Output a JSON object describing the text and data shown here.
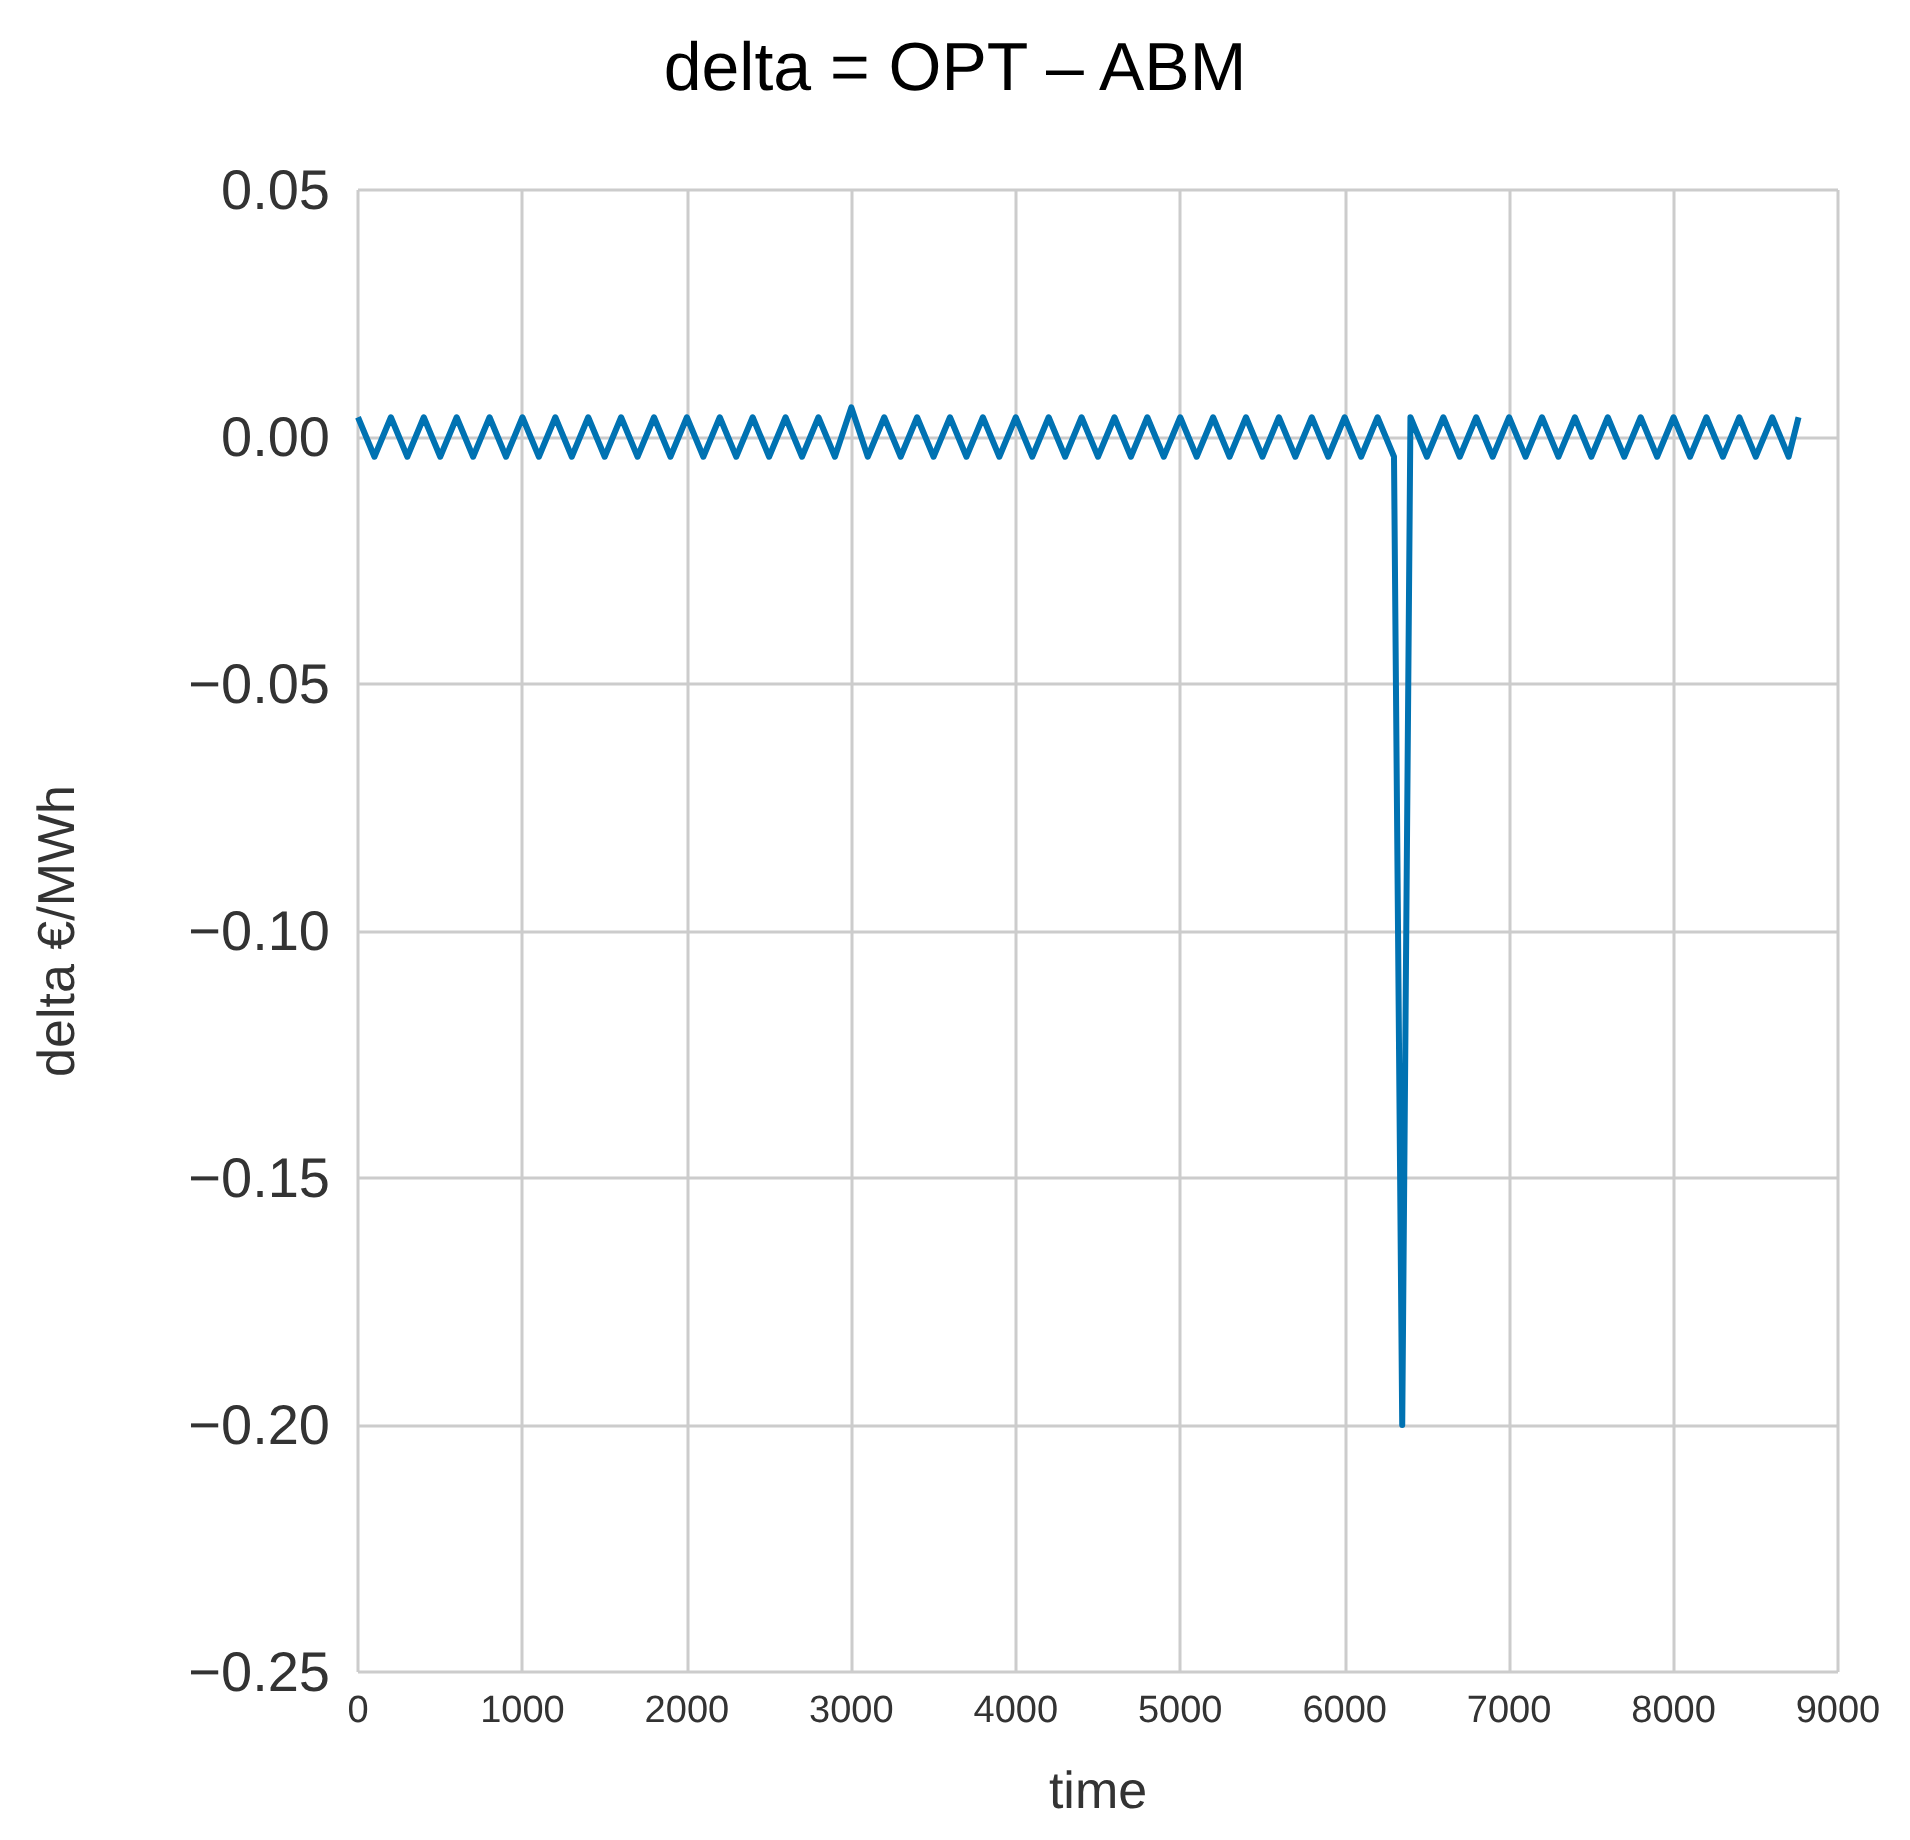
{
  "chart_data": {
    "type": "line",
    "title": "delta = OPT – ABM",
    "xlabel": "time",
    "ylabel": "delta €/MWh",
    "x": [
      0,
      100,
      200,
      300,
      400,
      500,
      600,
      700,
      800,
      900,
      1000,
      1100,
      1200,
      1300,
      1400,
      1500,
      1600,
      1700,
      1800,
      1900,
      2000,
      2100,
      2200,
      2300,
      2400,
      2500,
      2600,
      2700,
      2800,
      2900,
      3000,
      3100,
      3200,
      3300,
      3400,
      3500,
      3600,
      3700,
      3800,
      3900,
      4000,
      4100,
      4200,
      4300,
      4400,
      4500,
      4600,
      4700,
      4800,
      4900,
      5000,
      5100,
      5200,
      5300,
      5400,
      5500,
      5600,
      5700,
      5800,
      5900,
      6000,
      6100,
      6200,
      6300,
      6350,
      6400,
      6500,
      6600,
      6700,
      6800,
      6900,
      7000,
      7100,
      7200,
      7300,
      7400,
      7500,
      7600,
      7700,
      7800,
      7900,
      8000,
      8100,
      8200,
      8300,
      8400,
      8500,
      8600,
      8700,
      8760
    ],
    "series": [
      {
        "color": "#0072b2",
        "values": [
          0.004,
          -0.004,
          0.004,
          -0.004,
          0.004,
          -0.004,
          0.004,
          -0.004,
          0.004,
          -0.004,
          0.004,
          -0.004,
          0.004,
          -0.004,
          0.004,
          -0.004,
          0.004,
          -0.004,
          0.004,
          -0.004,
          0.004,
          -0.004,
          0.004,
          -0.004,
          0.004,
          -0.004,
          0.004,
          -0.004,
          0.004,
          -0.004,
          0.006,
          -0.004,
          0.004,
          -0.004,
          0.004,
          -0.004,
          0.004,
          -0.004,
          0.004,
          -0.004,
          0.004,
          -0.004,
          0.004,
          -0.004,
          0.004,
          -0.004,
          0.004,
          -0.004,
          0.004,
          -0.004,
          0.004,
          -0.004,
          0.004,
          -0.004,
          0.004,
          -0.004,
          0.004,
          -0.004,
          0.004,
          -0.004,
          0.004,
          -0.004,
          0.004,
          -0.004,
          -0.2,
          0.004,
          -0.004,
          0.004,
          -0.004,
          0.004,
          -0.004,
          0.004,
          -0.004,
          0.004,
          -0.004,
          0.004,
          -0.004,
          0.004,
          -0.004,
          0.004,
          -0.004,
          0.004,
          -0.004,
          0.004,
          -0.004,
          0.004,
          -0.004,
          0.004,
          -0.004,
          0.004
        ]
      }
    ],
    "xlim": [
      0,
      9000
    ],
    "xticks": [
      0,
      1000,
      2000,
      3000,
      4000,
      5000,
      6000,
      7000,
      8000,
      9000
    ],
    "ylim": [
      -0.25,
      0.05
    ],
    "yticks": [
      {
        "value": -0.25,
        "label": "−0.25"
      },
      {
        "value": -0.2,
        "label": "−0.20"
      },
      {
        "value": -0.15,
        "label": "−0.15"
      },
      {
        "value": -0.1,
        "label": "−0.10"
      },
      {
        "value": -0.05,
        "label": "−0.05"
      },
      {
        "value": 0,
        "label": "0.00"
      },
      {
        "value": 0.05,
        "label": "0.05"
      }
    ],
    "grid": true
  }
}
